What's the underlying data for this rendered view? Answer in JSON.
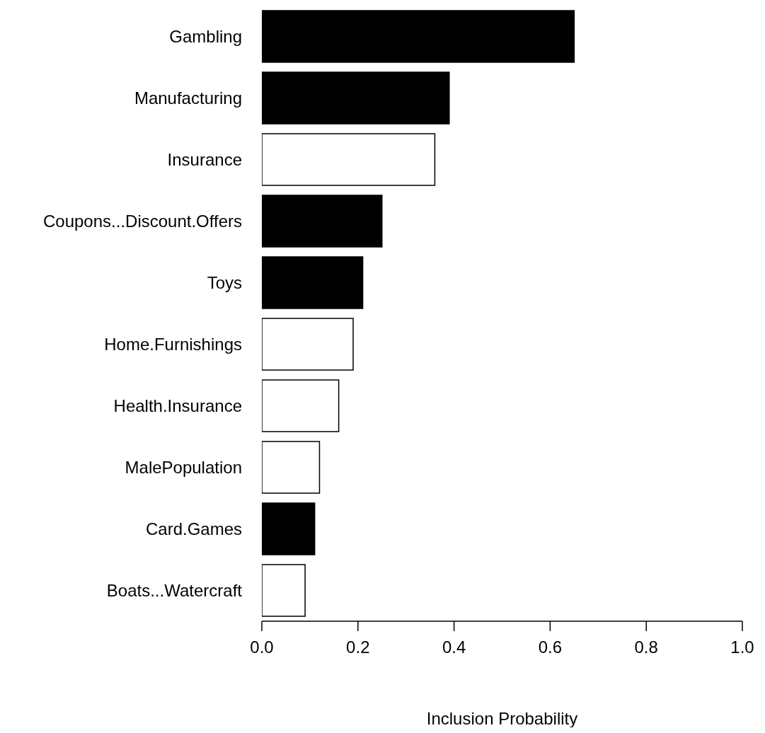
{
  "chart_data": {
    "type": "bar",
    "orientation": "horizontal",
    "xlabel": "Inclusion Probability",
    "categories": [
      "Gambling",
      "Manufacturing",
      "Insurance",
      "Coupons...Discount.Offers",
      "Toys",
      "Home.Furnishings",
      "Health.Insurance",
      "MalePopulation",
      "Card.Games",
      "Boats...Watercraft"
    ],
    "values": [
      0.65,
      0.39,
      0.36,
      0.25,
      0.21,
      0.19,
      0.16,
      0.12,
      0.11,
      0.09
    ],
    "colors": [
      "#000000",
      "#000000",
      "#ffffff",
      "#000000",
      "#000000",
      "#ffffff",
      "#ffffff",
      "#ffffff",
      "#000000",
      "#ffffff"
    ],
    "xlim": [
      0,
      1
    ],
    "xticks": [
      {
        "value": 0,
        "label": "0.0"
      },
      {
        "value": 0.2,
        "label": "0.2"
      },
      {
        "value": 0.4,
        "label": "0.4"
      },
      {
        "value": 0.6,
        "label": "0.6"
      },
      {
        "value": 0.8,
        "label": "0.8"
      },
      {
        "value": 1,
        "label": "1.0"
      }
    ],
    "grid": false,
    "legend": false
  }
}
